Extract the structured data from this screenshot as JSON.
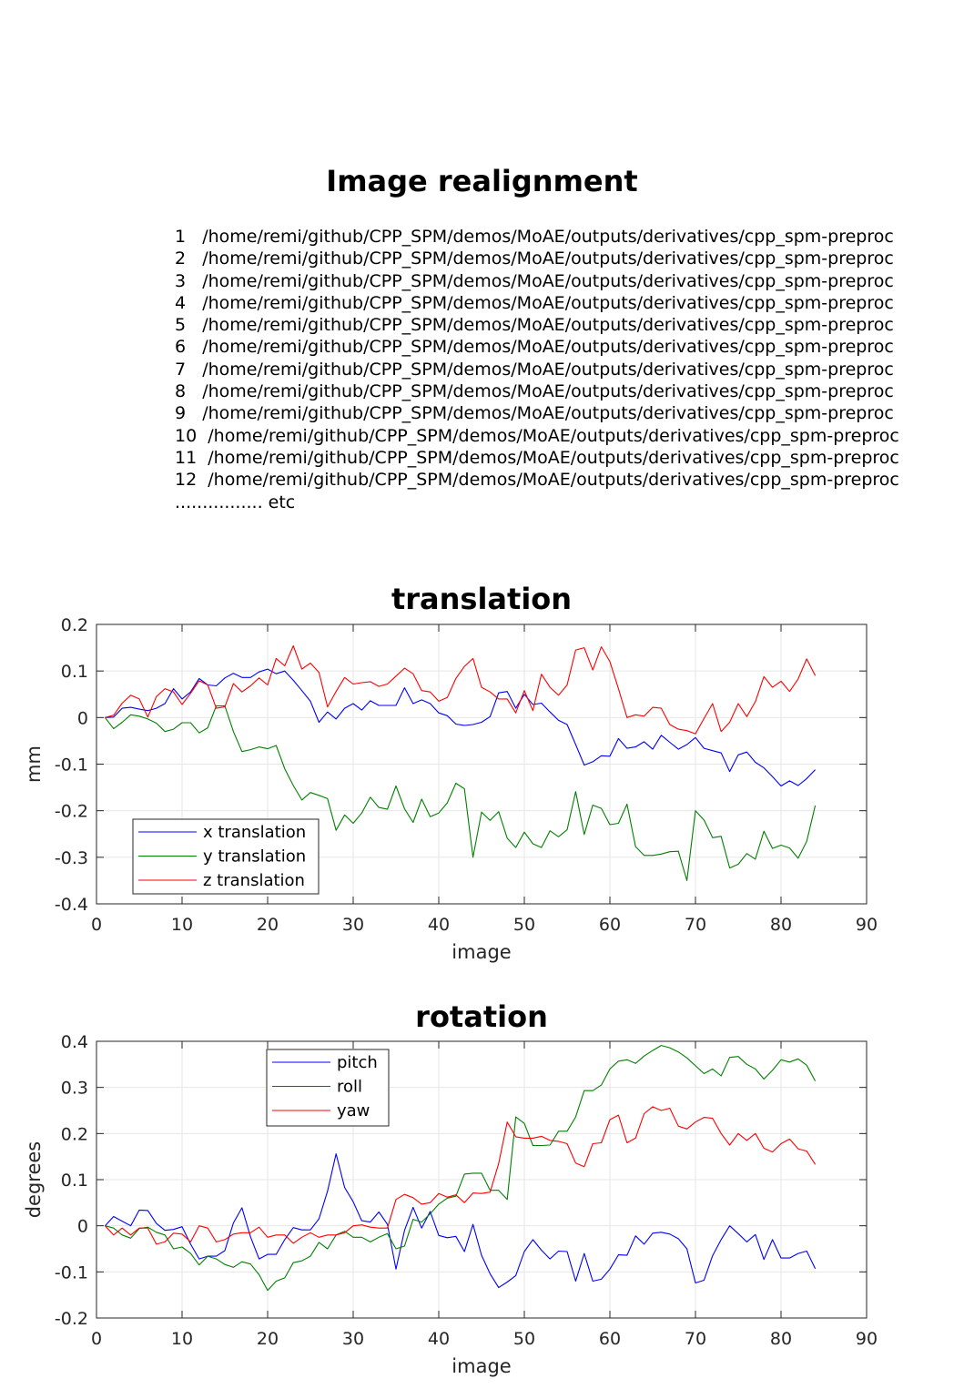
{
  "title": "Image realignment",
  "files": [
    {
      "n": "1",
      "path": "/home/remi/github/CPP_SPM/demos/MoAE/outputs/derivatives/cpp_spm-preproc"
    },
    {
      "n": "2",
      "path": "/home/remi/github/CPP_SPM/demos/MoAE/outputs/derivatives/cpp_spm-preproc"
    },
    {
      "n": "3",
      "path": "/home/remi/github/CPP_SPM/demos/MoAE/outputs/derivatives/cpp_spm-preproc"
    },
    {
      "n": "4",
      "path": "/home/remi/github/CPP_SPM/demos/MoAE/outputs/derivatives/cpp_spm-preproc"
    },
    {
      "n": "5",
      "path": "/home/remi/github/CPP_SPM/demos/MoAE/outputs/derivatives/cpp_spm-preproc"
    },
    {
      "n": "6",
      "path": "/home/remi/github/CPP_SPM/demos/MoAE/outputs/derivatives/cpp_spm-preproc"
    },
    {
      "n": "7",
      "path": "/home/remi/github/CPP_SPM/demos/MoAE/outputs/derivatives/cpp_spm-preproc"
    },
    {
      "n": "8",
      "path": "/home/remi/github/CPP_SPM/demos/MoAE/outputs/derivatives/cpp_spm-preproc"
    },
    {
      "n": "9",
      "path": "/home/remi/github/CPP_SPM/demos/MoAE/outputs/derivatives/cpp_spm-preproc"
    },
    {
      "n": "10",
      "path": "/home/remi/github/CPP_SPM/demos/MoAE/outputs/derivatives/cpp_spm-preproc"
    },
    {
      "n": "11",
      "path": "/home/remi/github/CPP_SPM/demos/MoAE/outputs/derivatives/cpp_spm-preproc"
    },
    {
      "n": "12",
      "path": "/home/remi/github/CPP_SPM/demos/MoAE/outputs/derivatives/cpp_spm-preproc"
    }
  ],
  "etc_label": "................ etc",
  "chart_data": [
    {
      "type": "line",
      "title": "translation",
      "xlabel": "image",
      "ylabel": "mm",
      "xlim": [
        0,
        90
      ],
      "ylim": [
        -0.4,
        0.2
      ],
      "xticks": [
        0,
        10,
        20,
        30,
        40,
        50,
        60,
        70,
        80,
        90
      ],
      "yticks": [
        -0.4,
        -0.3,
        -0.2,
        -0.1,
        0,
        0.1,
        0.2
      ],
      "ytick_labels": [
        "-0.4",
        "-0.3",
        "-0.2",
        "-0.1",
        "0",
        "0.1",
        "0.2"
      ],
      "grid": true,
      "legend_position": "bottom-left",
      "x": [
        1,
        2,
        3,
        4,
        5,
        6,
        7,
        8,
        9,
        10,
        11,
        12,
        13,
        14,
        15,
        16,
        17,
        18,
        19,
        20,
        21,
        22,
        23,
        24,
        25,
        26,
        27,
        28,
        29,
        30,
        31,
        32,
        33,
        34,
        35,
        36,
        37,
        38,
        39,
        40,
        41,
        42,
        43,
        44,
        45,
        46,
        47,
        48,
        49,
        50,
        51,
        52,
        53,
        54,
        55,
        56,
        57,
        58,
        59,
        60,
        61,
        62,
        63,
        64,
        65,
        66,
        67,
        68,
        69,
        70,
        71,
        72,
        73,
        74,
        75,
        76,
        77,
        78,
        79,
        80,
        81,
        82,
        83,
        84
      ],
      "series": [
        {
          "name": "x translation",
          "color": "#0000ff",
          "values": [
            0,
            0.001,
            0.02,
            0.022,
            0.018,
            0.015,
            0.02,
            0.03,
            0.062,
            0.04,
            0.055,
            0.084,
            0.07,
            0.068,
            0.085,
            0.095,
            0.086,
            0.086,
            0.098,
            0.104,
            0.094,
            0.1,
            0.08,
            0.058,
            0.035,
            -0.01,
            0.012,
            -0.003,
            0.02,
            0.03,
            0.016,
            0.036,
            0.026,
            0.026,
            0.026,
            0.064,
            0.03,
            0.038,
            0.03,
            0.01,
            0.004,
            -0.014,
            -0.017,
            -0.015,
            -0.01,
            0.002,
            0.053,
            0.056,
            0.02,
            0.05,
            0.028,
            0.031,
            0.012,
            -0.006,
            -0.015,
            -0.058,
            -0.102,
            -0.095,
            -0.082,
            -0.083,
            -0.045,
            -0.066,
            -0.063,
            -0.052,
            -0.068,
            -0.038,
            -0.053,
            -0.068,
            -0.058,
            -0.043,
            -0.066,
            -0.071,
            -0.076,
            -0.116,
            -0.08,
            -0.074,
            -0.096,
            -0.108,
            -0.127,
            -0.147,
            -0.136,
            -0.146,
            -0.131,
            -0.112
          ]
        },
        {
          "name": "y translation",
          "color": "#008000",
          "values": [
            0,
            -0.024,
            -0.01,
            0.006,
            0.003,
            -0.003,
            -0.012,
            -0.03,
            -0.025,
            -0.011,
            -0.011,
            -0.033,
            -0.022,
            0.025,
            0.025,
            -0.03,
            -0.073,
            -0.069,
            -0.063,
            -0.067,
            -0.06,
            -0.11,
            -0.146,
            -0.177,
            -0.161,
            -0.167,
            -0.174,
            -0.242,
            -0.209,
            -0.227,
            -0.205,
            -0.171,
            -0.193,
            -0.197,
            -0.147,
            -0.196,
            -0.225,
            -0.175,
            -0.213,
            -0.205,
            -0.183,
            -0.141,
            -0.153,
            -0.3,
            -0.203,
            -0.221,
            -0.202,
            -0.259,
            -0.279,
            -0.246,
            -0.271,
            -0.279,
            -0.243,
            -0.256,
            -0.241,
            -0.159,
            -0.251,
            -0.188,
            -0.195,
            -0.23,
            -0.227,
            -0.186,
            -0.277,
            -0.296,
            -0.296,
            -0.293,
            -0.288,
            -0.287,
            -0.35,
            -0.2,
            -0.22,
            -0.258,
            -0.255,
            -0.323,
            -0.315,
            -0.292,
            -0.304,
            -0.244,
            -0.281,
            -0.274,
            -0.28,
            -0.302,
            -0.266,
            -0.189
          ]
        },
        {
          "name": "z translation",
          "color": "#ff0000",
          "values": [
            0,
            0.005,
            0.031,
            0.048,
            0.04,
            0.001,
            0.045,
            0.062,
            0.055,
            0.028,
            0.052,
            0.079,
            0.07,
            0.02,
            0.023,
            0.073,
            0.055,
            0.068,
            0.085,
            0.07,
            0.127,
            0.111,
            0.154,
            0.104,
            0.117,
            0.097,
            0.023,
            0.056,
            0.086,
            0.072,
            0.075,
            0.077,
            0.067,
            0.072,
            0.089,
            0.106,
            0.094,
            0.058,
            0.055,
            0.035,
            0.043,
            0.084,
            0.11,
            0.127,
            0.065,
            0.055,
            0.04,
            0.04,
            0.01,
            0.058,
            0.015,
            0.093,
            0.065,
            0.048,
            0.07,
            0.145,
            0.15,
            0.102,
            0.152,
            0.12,
            0.062,
            0,
            0.006,
            0.003,
            0.022,
            0.02,
            -0.015,
            -0.025,
            -0.028,
            -0.035,
            -0.002,
            0.03,
            -0.03,
            -0.01,
            0.03,
            0.002,
            0.034,
            0.088,
            0.065,
            0.078,
            0.056,
            0.083,
            0.126,
            0.09
          ]
        }
      ]
    },
    {
      "type": "line",
      "title": "rotation",
      "xlabel": "image",
      "ylabel": "degrees",
      "xlim": [
        0,
        90
      ],
      "ylim": [
        -0.2,
        0.4
      ],
      "xticks": [
        0,
        10,
        20,
        30,
        40,
        50,
        60,
        70,
        80,
        90
      ],
      "yticks": [
        -0.2,
        -0.1,
        0,
        0.1,
        0.2,
        0.3,
        0.4
      ],
      "ytick_labels": [
        "-0.2",
        "-0.1",
        "0",
        "0.1",
        "0.2",
        "0.3",
        "0.4"
      ],
      "grid": true,
      "legend_position": "top-left",
      "x": [
        1,
        2,
        3,
        4,
        5,
        6,
        7,
        8,
        9,
        10,
        11,
        12,
        13,
        14,
        15,
        16,
        17,
        18,
        19,
        20,
        21,
        22,
        23,
        24,
        25,
        26,
        27,
        28,
        29,
        30,
        31,
        32,
        33,
        34,
        35,
        36,
        37,
        38,
        39,
        40,
        41,
        42,
        43,
        44,
        45,
        46,
        47,
        48,
        49,
        50,
        51,
        52,
        53,
        54,
        55,
        56,
        57,
        58,
        59,
        60,
        61,
        62,
        63,
        64,
        65,
        66,
        67,
        68,
        69,
        70,
        71,
        72,
        73,
        74,
        75,
        76,
        77,
        78,
        79,
        80,
        81,
        82,
        83,
        84
      ],
      "series": [
        {
          "name": "pitch",
          "color": "#0000ff",
          "values": [
            0,
            0.02,
            0.01,
            0,
            0.034,
            0.033,
            0.005,
            -0.01,
            -0.008,
            -0.002,
            -0.04,
            -0.072,
            -0.066,
            -0.066,
            -0.054,
            0.006,
            0.039,
            -0.024,
            -0.072,
            -0.062,
            -0.062,
            -0.03,
            -0.004,
            -0.009,
            -0.009,
            0.015,
            0.075,
            0.156,
            0.083,
            0.052,
            0.011,
            0.008,
            0.03,
            0.003,
            -0.094,
            -0.01,
            0.04,
            -0.005,
            0.031,
            -0.021,
            -0.026,
            -0.023,
            -0.056,
            0.003,
            -0.064,
            -0.104,
            -0.134,
            -0.122,
            -0.108,
            -0.056,
            -0.03,
            -0.053,
            -0.072,
            -0.055,
            -0.056,
            -0.12,
            -0.06,
            -0.12,
            -0.116,
            -0.094,
            -0.063,
            -0.064,
            -0.022,
            -0.04,
            -0.016,
            -0.014,
            -0.018,
            -0.028,
            -0.05,
            -0.124,
            -0.118,
            -0.065,
            -0.03,
            0,
            -0.017,
            -0.035,
            -0.019,
            -0.073,
            -0.03,
            -0.07,
            -0.07,
            -0.06,
            -0.055,
            -0.093
          ]
        },
        {
          "name": "roll",
          "color": "#008000",
          "values": [
            0,
            -0.005,
            -0.02,
            -0.027,
            -0.006,
            -0.003,
            -0.014,
            -0.02,
            -0.05,
            -0.046,
            -0.06,
            -0.085,
            -0.066,
            -0.072,
            -0.084,
            -0.09,
            -0.078,
            -0.083,
            -0.106,
            -0.14,
            -0.12,
            -0.113,
            -0.08,
            -0.076,
            -0.066,
            -0.036,
            -0.05,
            -0.02,
            -0.012,
            -0.025,
            -0.025,
            -0.035,
            -0.025,
            -0.017,
            -0.05,
            -0.044,
            0.014,
            0.008,
            0.026,
            0.047,
            0.06,
            0.064,
            0.112,
            0.114,
            0.114,
            0.077,
            0.077,
            0.057,
            0.236,
            0.222,
            0.174,
            0.174,
            0.175,
            0.205,
            0.205,
            0.236,
            0.293,
            0.293,
            0.305,
            0.34,
            0.357,
            0.36,
            0.352,
            0.368,
            0.38,
            0.391,
            0.386,
            0.377,
            0.364,
            0.347,
            0.33,
            0.34,
            0.325,
            0.365,
            0.367,
            0.35,
            0.34,
            0.318,
            0.337,
            0.36,
            0.355,
            0.362,
            0.348,
            0.314
          ]
        },
        {
          "name": "yaw",
          "color": "#ff0000",
          "values": [
            0,
            -0.02,
            -0.005,
            -0.02,
            -0.005,
            -0.005,
            -0.04,
            -0.035,
            -0.016,
            -0.018,
            -0.035,
            0,
            -0.005,
            -0.035,
            -0.03,
            -0.018,
            -0.015,
            -0.015,
            -0.003,
            -0.025,
            -0.02,
            -0.02,
            -0.038,
            -0.025,
            -0.015,
            -0.025,
            -0.02,
            -0.02,
            -0.015,
            0,
            0.002,
            -0.003,
            -0.005,
            -0.005,
            0.057,
            0.068,
            0.061,
            0.047,
            0.05,
            0.07,
            0.062,
            0.067,
            0.05,
            0.071,
            0.07,
            0.073,
            0.135,
            0.225,
            0.193,
            0.19,
            0.19,
            0.194,
            0.185,
            0.183,
            0.178,
            0.136,
            0.128,
            0.178,
            0.18,
            0.23,
            0.24,
            0.18,
            0.19,
            0.243,
            0.258,
            0.25,
            0.255,
            0.216,
            0.21,
            0.225,
            0.235,
            0.233,
            0.2,
            0.175,
            0.2,
            0.185,
            0.2,
            0.168,
            0.16,
            0.178,
            0.188,
            0.167,
            0.162,
            0.133
          ]
        }
      ]
    }
  ]
}
